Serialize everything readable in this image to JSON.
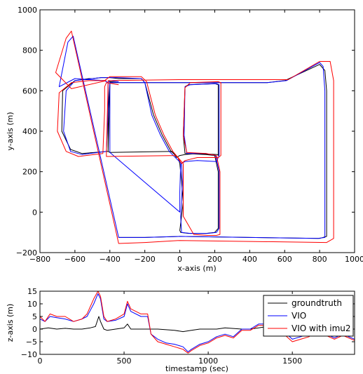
{
  "chart_data": [
    {
      "type": "line",
      "xlabel": "x-axis (m)",
      "ylabel": "y-axis (m)",
      "xlim": [
        -800,
        1000
      ],
      "ylim": [
        -200,
        1000
      ],
      "xticks": [
        "−800",
        "−600",
        "−400",
        "−200",
        "0",
        "200",
        "400",
        "600",
        "800",
        "1000"
      ],
      "yticks": [
        "−200",
        "0",
        "200",
        "400",
        "600",
        "800",
        "1000"
      ],
      "grid": false,
      "series": [
        {
          "name": "groundtruth",
          "color": "#000000",
          "x": [
            -350,
            -400,
            -400,
            -410,
            -410,
            -560,
            -625,
            -675,
            -670,
            -600,
            -520,
            -500,
            -450,
            -400,
            -350,
            -220,
            -200,
            -150,
            -100,
            -50,
            -10,
            0,
            10,
            20,
            10,
            0,
            5,
            50,
            150,
            200,
            220,
            220,
            200,
            150,
            30,
            20,
            30,
            50,
            200,
            220,
            220,
            215,
            100,
            30,
            0,
            -20,
            -40,
            -400,
            -410,
            -400,
            0,
            500,
            600,
            800,
            830,
            840,
            840,
            800,
            400,
            0,
            -200,
            -350
          ],
          "y": [
            640,
            645,
            640,
            500,
            300,
            290,
            310,
            400,
            600,
            650,
            660,
            660,
            665,
            665,
            660,
            660,
            640,
            480,
            380,
            300,
            270,
            240,
            150,
            50,
            -20,
            -90,
            -100,
            -105,
            -105,
            -100,
            -80,
            200,
            280,
            285,
            290,
            380,
            620,
            630,
            635,
            630,
            280,
            285,
            290,
            285,
            280,
            270,
            300,
            295,
            300,
            640,
            640,
            640,
            650,
            730,
            700,
            600,
            -120,
            -130,
            -125,
            -120,
            -125,
            -125
          ]
        },
        {
          "name": "VIO",
          "color": "#0000ff",
          "x": [
            -350,
            -400,
            -410,
            -410,
            -420,
            -560,
            -625,
            -665,
            -650,
            -600,
            -500,
            -450,
            -400,
            -360,
            -220,
            -200,
            -160,
            -110,
            -60,
            -20,
            10,
            15,
            10,
            5,
            10,
            60,
            160,
            210,
            225,
            225,
            205,
            150,
            40,
            25,
            30,
            60,
            210,
            225,
            225,
            210,
            100,
            30,
            5,
            0,
            0,
            -400,
            -400,
            -400,
            0,
            500,
            610,
            800,
            820,
            830,
            830,
            790,
            400,
            0,
            -200,
            -350,
            -610,
            -640,
            -690,
            -600,
            -430,
            -410
          ],
          "y": [
            645,
            650,
            640,
            500,
            300,
            285,
            300,
            400,
            600,
            650,
            660,
            665,
            665,
            665,
            660,
            640,
            480,
            380,
            300,
            265,
            240,
            150,
            50,
            -20,
            -100,
            -105,
            -105,
            -100,
            -80,
            200,
            280,
            290,
            290,
            380,
            620,
            630,
            635,
            630,
            280,
            250,
            255,
            250,
            240,
            100,
            0,
            295,
            300,
            640,
            640,
            640,
            650,
            740,
            720,
            600,
            -125,
            -130,
            -125,
            -120,
            -125,
            -125,
            870,
            840,
            620,
            660,
            650,
            640
          ]
        },
        {
          "name": "VIO with imu2",
          "color": "#ff0000",
          "x": [
            -350,
            -420,
            -430,
            -430,
            -440,
            -580,
            -650,
            -700,
            -690,
            -620,
            -520,
            -430,
            -400,
            -220,
            -190,
            -140,
            -90,
            -40,
            0,
            20,
            20,
            20,
            80,
            160,
            210,
            230,
            230,
            210,
            150,
            40,
            20,
            30,
            60,
            220,
            235,
            235,
            220,
            100,
            30,
            10,
            -20,
            -420,
            -420,
            -410,
            0,
            500,
            620,
            800,
            860,
            880,
            880,
            840,
            400,
            0,
            -200,
            -350,
            -620,
            -650,
            -710,
            -620,
            -420
          ],
          "y": [
            630,
            640,
            620,
            500,
            290,
            275,
            300,
            400,
            590,
            640,
            650,
            650,
            670,
            670,
            645,
            480,
            380,
            300,
            260,
            240,
            50,
            -20,
            -110,
            -115,
            -115,
            -110,
            200,
            280,
            290,
            295,
            380,
            615,
            640,
            645,
            640,
            280,
            270,
            270,
            255,
            240,
            280,
            275,
            280,
            650,
            655,
            655,
            655,
            745,
            745,
            650,
            -130,
            -150,
            -145,
            -140,
            -150,
            -155,
            895,
            860,
            690,
            610,
            650
          ]
        }
      ]
    },
    {
      "type": "line",
      "xlabel": "timestamp (sec)",
      "ylabel": "z-axis (m)",
      "xlim": [
        0,
        1870
      ],
      "ylim": [
        -10,
        15
      ],
      "xticks": [
        "0",
        "500",
        "1000",
        "1500"
      ],
      "yticks": [
        "−10",
        "−5",
        "0",
        "5",
        "10",
        "15"
      ],
      "grid": false,
      "legend": {
        "position": "top-right"
      },
      "series": [
        {
          "name": "groundtruth",
          "color": "#000000",
          "x": [
            0,
            50,
            100,
            150,
            200,
            250,
            300,
            330,
            350,
            360,
            380,
            400,
            450,
            500,
            520,
            540,
            600,
            650,
            700,
            800,
            850,
            900,
            950,
            1000,
            1050,
            1100,
            1200,
            1250,
            1300,
            1350,
            1380,
            1400,
            1450,
            1500,
            1550,
            1600,
            1650,
            1700,
            1750,
            1800,
            1870
          ],
          "y": [
            0,
            0.5,
            0,
            0.3,
            0,
            0,
            0.5,
            1,
            5,
            3,
            0,
            -0.5,
            0,
            0.5,
            2,
            0,
            0,
            0,
            0,
            -0.5,
            -1,
            -0.5,
            0,
            0,
            0,
            0.5,
            0,
            0,
            0.5,
            1,
            3,
            0,
            -0.5,
            0,
            0.5,
            0,
            0,
            0,
            0.5,
            0,
            0
          ]
        },
        {
          "name": "VIO",
          "color": "#0000ff",
          "x": [
            0,
            30,
            60,
            100,
            150,
            200,
            250,
            280,
            320,
            345,
            360,
            380,
            400,
            450,
            500,
            520,
            540,
            600,
            640,
            660,
            700,
            750,
            800,
            850,
            880,
            900,
            950,
            1000,
            1050,
            1100,
            1150,
            1200,
            1250,
            1300,
            1350,
            1375,
            1400,
            1450,
            1500,
            1550,
            1600,
            1650,
            1700,
            1750,
            1800,
            1870
          ],
          "y": [
            4,
            3,
            5,
            4.5,
            4,
            3,
            4,
            5,
            10,
            14,
            12,
            4,
            3,
            3.5,
            5,
            10,
            7,
            5,
            5,
            -2,
            -4,
            -5.5,
            -6,
            -7,
            -9,
            -8,
            -6,
            -5,
            -3,
            -2,
            -3,
            0,
            0,
            2,
            2,
            5,
            3,
            -1,
            -4,
            -3,
            -2,
            1,
            -2,
            -3.5,
            -2,
            -4
          ]
        },
        {
          "name": "VIO with imu2",
          "color": "#ff0000",
          "x": [
            0,
            30,
            60,
            100,
            150,
            200,
            250,
            280,
            320,
            345,
            360,
            380,
            400,
            450,
            500,
            520,
            540,
            600,
            640,
            660,
            700,
            750,
            800,
            850,
            880,
            900,
            950,
            1000,
            1050,
            1100,
            1150,
            1200,
            1250,
            1300,
            1350,
            1375,
            1400,
            1450,
            1500,
            1550,
            1600,
            1650,
            1700,
            1750,
            1800,
            1870
          ],
          "y": [
            5,
            3,
            6,
            5,
            5,
            3,
            4,
            6,
            12,
            15,
            13,
            5,
            3,
            4,
            6,
            11,
            8,
            6,
            6,
            -2,
            -5,
            -6,
            -7,
            -8,
            -9.5,
            -8.5,
            -6.5,
            -5.5,
            -3.5,
            -2.5,
            -3.5,
            -0.5,
            -0.5,
            1.5,
            1.5,
            4,
            2,
            -2,
            -5,
            -4,
            -3,
            0.5,
            -2.5,
            -4,
            -2.5,
            -4.5
          ]
        }
      ]
    }
  ]
}
